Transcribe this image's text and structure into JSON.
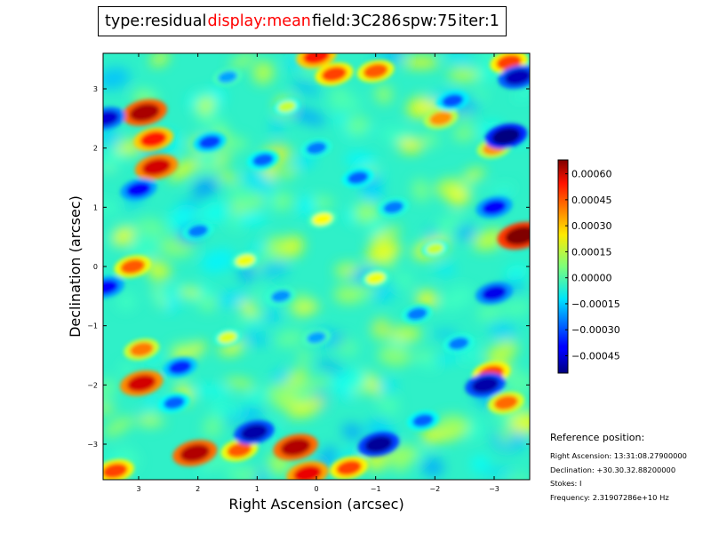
{
  "title": {
    "items": [
      {
        "label": "type:residual",
        "color": "#000000"
      },
      {
        "label": "display:mean",
        "color": "#ff0000"
      },
      {
        "label": "field:3C286",
        "color": "#000000"
      },
      {
        "label": "spw:75",
        "color": "#000000"
      },
      {
        "label": "iter:1",
        "color": "#000000"
      }
    ]
  },
  "chart_data": {
    "type": "heatmap",
    "title": "type:residual display:mean field:3C286 spw:75 iter:1",
    "xlabel": "Right Ascension (arcsec)",
    "ylabel": "Declination (arcsec)",
    "xlim": [
      3.6,
      -3.6
    ],
    "ylim": [
      -3.6,
      3.6
    ],
    "xticks": [
      3,
      2,
      1,
      0,
      -1,
      -2,
      -3
    ],
    "xtick_labels": [
      "3",
      "2",
      "1",
      "0",
      "−1",
      "−2",
      "−3"
    ],
    "yticks": [
      3,
      2,
      1,
      0,
      -1,
      -2,
      -3
    ],
    "ytick_labels": [
      "3",
      "2",
      "1",
      "0",
      "−1",
      "−2",
      "−3"
    ],
    "colormap": "jet",
    "colorbar": {
      "min": -0.00055,
      "max": 0.00068,
      "ticks": [
        0.0006,
        0.00045,
        0.0003,
        0.00015,
        0.0,
        -0.00015,
        -0.0003,
        -0.00045
      ],
      "tick_labels": [
        "0.00060",
        "0.00045",
        "0.00030",
        "0.00015",
        "0.00000",
        "−0.00015",
        "−0.00030",
        "−0.00045"
      ]
    },
    "features": [
      {
        "ra": 2.9,
        "dec": 2.6,
        "value": 0.00063
      },
      {
        "ra": 2.75,
        "dec": 2.15,
        "value": 0.0005
      },
      {
        "ra": 2.7,
        "dec": 1.68,
        "value": 0.00058
      },
      {
        "ra": -3.45,
        "dec": 0.52,
        "value": 0.00068
      },
      {
        "ra": 2.95,
        "dec": -1.97,
        "value": 0.00058
      },
      {
        "ra": 2.05,
        "dec": -3.15,
        "value": 0.00062
      },
      {
        "ra": 0.35,
        "dec": -3.05,
        "value": 0.00062
      },
      {
        "ra": 0.15,
        "dec": -3.5,
        "value": 0.00055
      },
      {
        "ra": -1.0,
        "dec": 3.3,
        "value": 0.00042
      },
      {
        "ra": -0.3,
        "dec": 3.25,
        "value": 0.00045
      },
      {
        "ra": 0.0,
        "dec": 3.55,
        "value": 0.0005
      },
      {
        "ra": -2.95,
        "dec": -1.8,
        "value": 0.00045
      },
      {
        "ra": -3.2,
        "dec": -2.3,
        "value": 0.0004
      },
      {
        "ra": -0.55,
        "dec": -3.4,
        "value": 0.00045
      },
      {
        "ra": 1.3,
        "dec": -3.1,
        "value": 0.00042
      },
      {
        "ra": 3.1,
        "dec": 0.0,
        "value": 0.00042
      },
      {
        "ra": 2.95,
        "dec": -1.4,
        "value": 0.00038
      },
      {
        "ra": 3.4,
        "dec": -3.45,
        "value": 0.00045
      },
      {
        "ra": -3.25,
        "dec": 3.45,
        "value": 0.00045
      },
      {
        "ra": -2.1,
        "dec": 2.5,
        "value": 0.00035
      },
      {
        "ra": -3.0,
        "dec": 2.0,
        "value": 0.00035
      },
      {
        "ra": 1.05,
        "dec": -2.8,
        "value": -0.0005
      },
      {
        "ra": -1.05,
        "dec": -3.0,
        "value": -0.00052
      },
      {
        "ra": -3.2,
        "dec": 2.2,
        "value": -0.00055
      },
      {
        "ra": -2.85,
        "dec": -2.0,
        "value": -0.0005
      },
      {
        "ra": -3.4,
        "dec": 3.2,
        "value": -0.00048
      },
      {
        "ra": 3.55,
        "dec": 2.5,
        "value": -0.00045
      },
      {
        "ra": -3.0,
        "dec": -0.45,
        "value": -0.00042
      },
      {
        "ra": -3.0,
        "dec": 1.0,
        "value": -0.0004
      },
      {
        "ra": 3.55,
        "dec": -0.35,
        "value": -0.0004
      },
      {
        "ra": 3.0,
        "dec": 1.3,
        "value": -0.0004
      },
      {
        "ra": 2.3,
        "dec": -1.7,
        "value": -0.00035
      },
      {
        "ra": 1.8,
        "dec": 2.1,
        "value": -0.00032
      },
      {
        "ra": -0.7,
        "dec": 1.5,
        "value": -0.00028
      },
      {
        "ra": 0.9,
        "dec": 1.8,
        "value": -0.00028
      },
      {
        "ra": -1.3,
        "dec": 1.0,
        "value": -0.00025
      },
      {
        "ra": -2.3,
        "dec": 2.8,
        "value": -0.0003
      },
      {
        "ra": 0.0,
        "dec": 2.0,
        "value": -0.00025
      },
      {
        "ra": 2.0,
        "dec": 0.6,
        "value": -0.00025
      },
      {
        "ra": -1.7,
        "dec": -0.8,
        "value": -0.00025
      },
      {
        "ra": 0.6,
        "dec": -0.5,
        "value": -0.00022
      },
      {
        "ra": 2.4,
        "dec": -2.3,
        "value": -0.00028
      },
      {
        "ra": -1.8,
        "dec": -2.6,
        "value": -0.00028
      },
      {
        "ra": 0.0,
        "dec": -1.2,
        "value": -0.0002
      },
      {
        "ra": -2.4,
        "dec": -1.3,
        "value": -0.00025
      },
      {
        "ra": 1.5,
        "dec": 3.2,
        "value": -0.0002
      },
      {
        "ra": -0.1,
        "dec": 0.8,
        "value": 0.00022
      },
      {
        "ra": 1.2,
        "dec": 0.1,
        "value": 0.0002
      },
      {
        "ra": -1.0,
        "dec": -0.2,
        "value": 0.0002
      },
      {
        "ra": 1.5,
        "dec": -1.2,
        "value": 0.00018
      },
      {
        "ra": -2.0,
        "dec": 0.3,
        "value": 0.00015
      },
      {
        "ra": 0.5,
        "dec": 2.7,
        "value": 0.00015
      }
    ]
  },
  "reference": {
    "title": "Reference position:",
    "ra": "Right Ascension: 13:31:08.27900000",
    "dec": "Declination: +30.30.32.88200000",
    "stokes": "Stokes: I",
    "frequency": "Frequency: 2.31907286e+10 Hz"
  }
}
